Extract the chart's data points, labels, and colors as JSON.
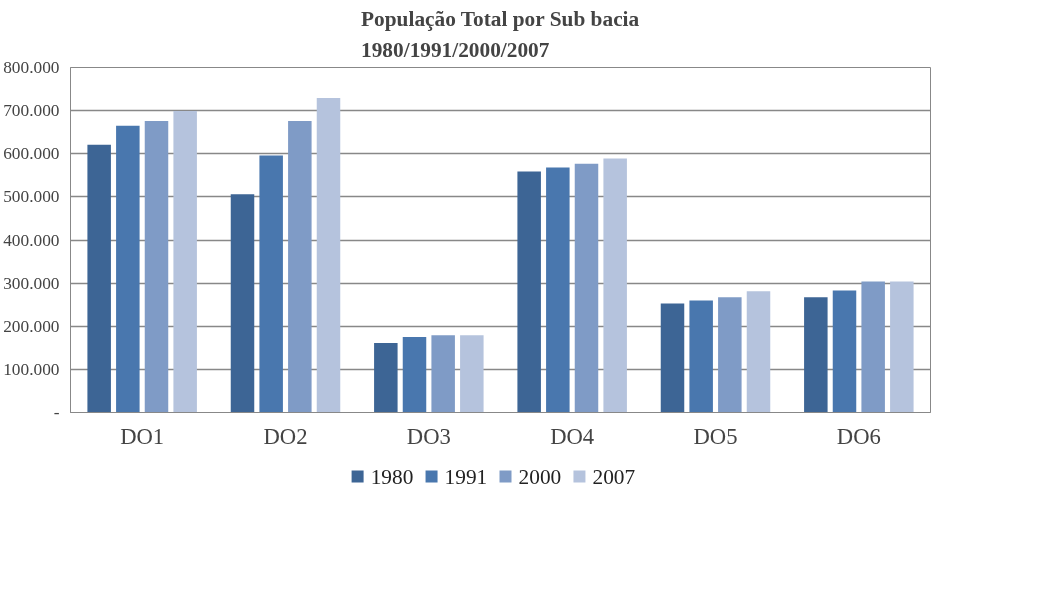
{
  "chart_data": {
    "type": "bar",
    "title": "População Total por Sub bacia\n1980/1991/2000/2007",
    "categories": [
      "DO1",
      "DO2",
      "DO3",
      "DO4",
      "DO5",
      "DO6"
    ],
    "series": [
      {
        "name": "1980",
        "color": "#3d6595",
        "values": [
          621000,
          506000,
          161000,
          559000,
          253000,
          267000
        ]
      },
      {
        "name": "1991",
        "color": "#4977ae",
        "values": [
          665000,
          596000,
          175000,
          568000,
          260000,
          283000
        ]
      },
      {
        "name": "2000",
        "color": "#7f9bc6",
        "values": [
          676000,
          676000,
          179000,
          577000,
          267000,
          304000
        ]
      },
      {
        "name": "2007",
        "color": "#b5c3dd",
        "values": [
          699000,
          729000,
          179000,
          589000,
          281000,
          304000
        ]
      }
    ],
    "ylim": [
      0,
      800000
    ],
    "yticks": [
      {
        "value": 0,
        "label": "-"
      },
      {
        "value": 100000,
        "label": "100.000"
      },
      {
        "value": 200000,
        "label": "200.000"
      },
      {
        "value": 300000,
        "label": "300.000"
      },
      {
        "value": 400000,
        "label": "400.000"
      },
      {
        "value": 500000,
        "label": "500.000"
      },
      {
        "value": 600000,
        "label": "600.000"
      },
      {
        "value": 700000,
        "label": "700.000"
      },
      {
        "value": 800000,
        "label": "800.000"
      }
    ],
    "grid": "y",
    "legend": "bottom"
  }
}
